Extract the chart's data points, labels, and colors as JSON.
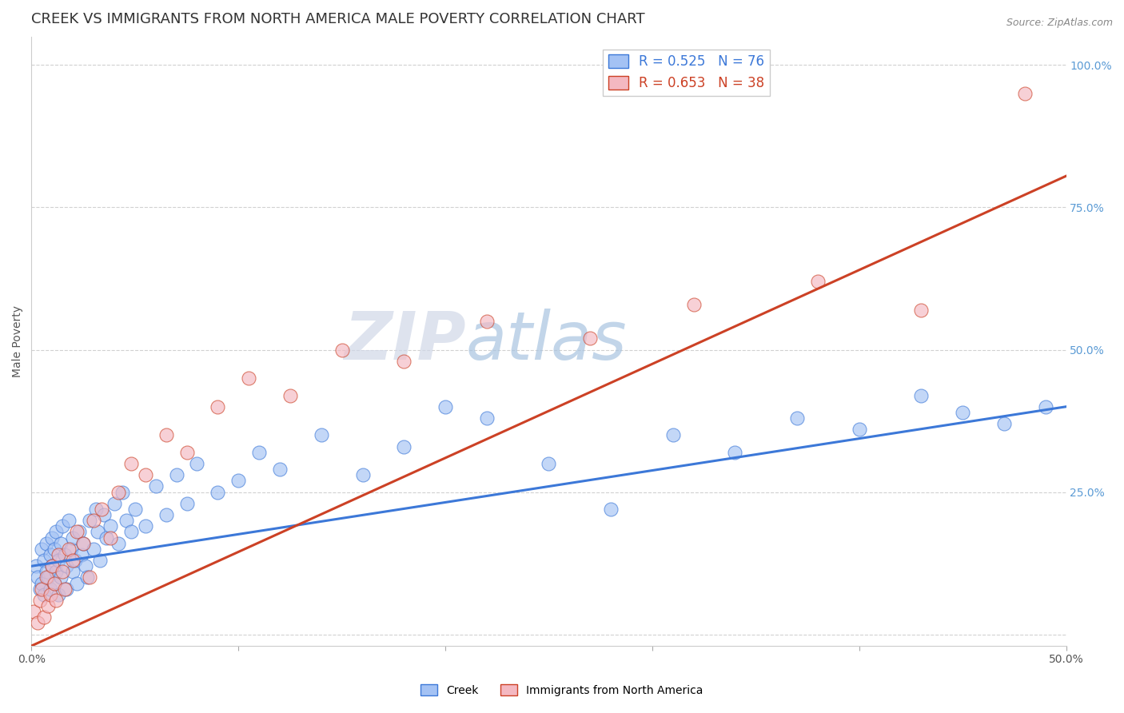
{
  "title": "CREEK VS IMMIGRANTS FROM NORTH AMERICA MALE POVERTY CORRELATION CHART",
  "source": "Source: ZipAtlas.com",
  "xlabel": "",
  "ylabel": "Male Poverty",
  "xlim": [
    0.0,
    0.5
  ],
  "ylim": [
    -0.02,
    1.05
  ],
  "yticks": [
    0.0,
    0.25,
    0.5,
    0.75,
    1.0
  ],
  "ytick_labels": [
    "",
    "25.0%",
    "50.0%",
    "75.0%",
    "100.0%"
  ],
  "xticks": [
    0.0,
    0.1,
    0.2,
    0.3,
    0.4,
    0.5
  ],
  "xtick_labels": [
    "0.0%",
    "",
    "",
    "",
    "",
    "50.0%"
  ],
  "blue_color": "#a4c2f4",
  "pink_color": "#f4b8c1",
  "blue_line_color": "#3c78d8",
  "pink_line_color": "#cc4125",
  "legend_blue_label": "R = 0.525   N = 76",
  "legend_pink_label": "R = 0.653   N = 38",
  "watermark_zip": "ZIP",
  "watermark_atlas": "atlas",
  "creek_x": [
    0.002,
    0.003,
    0.004,
    0.005,
    0.005,
    0.006,
    0.006,
    0.007,
    0.007,
    0.008,
    0.009,
    0.009,
    0.01,
    0.01,
    0.011,
    0.011,
    0.012,
    0.012,
    0.013,
    0.013,
    0.014,
    0.014,
    0.015,
    0.016,
    0.017,
    0.017,
    0.018,
    0.019,
    0.02,
    0.02,
    0.021,
    0.022,
    0.023,
    0.024,
    0.025,
    0.026,
    0.027,
    0.028,
    0.03,
    0.031,
    0.032,
    0.033,
    0.035,
    0.036,
    0.038,
    0.04,
    0.042,
    0.044,
    0.046,
    0.048,
    0.05,
    0.055,
    0.06,
    0.065,
    0.07,
    0.075,
    0.08,
    0.09,
    0.1,
    0.11,
    0.12,
    0.14,
    0.16,
    0.18,
    0.2,
    0.22,
    0.25,
    0.28,
    0.31,
    0.34,
    0.37,
    0.4,
    0.43,
    0.45,
    0.47,
    0.49
  ],
  "creek_y": [
    0.12,
    0.1,
    0.08,
    0.15,
    0.09,
    0.13,
    0.07,
    0.11,
    0.16,
    0.1,
    0.14,
    0.08,
    0.17,
    0.12,
    0.09,
    0.15,
    0.11,
    0.18,
    0.13,
    0.07,
    0.16,
    0.1,
    0.19,
    0.14,
    0.12,
    0.08,
    0.2,
    0.15,
    0.11,
    0.17,
    0.13,
    0.09,
    0.18,
    0.14,
    0.16,
    0.12,
    0.1,
    0.2,
    0.15,
    0.22,
    0.18,
    0.13,
    0.21,
    0.17,
    0.19,
    0.23,
    0.16,
    0.25,
    0.2,
    0.18,
    0.22,
    0.19,
    0.26,
    0.21,
    0.28,
    0.23,
    0.3,
    0.25,
    0.27,
    0.32,
    0.29,
    0.35,
    0.28,
    0.33,
    0.4,
    0.38,
    0.3,
    0.22,
    0.35,
    0.32,
    0.38,
    0.36,
    0.42,
    0.39,
    0.37,
    0.4
  ],
  "immig_x": [
    0.001,
    0.003,
    0.004,
    0.005,
    0.006,
    0.007,
    0.008,
    0.009,
    0.01,
    0.011,
    0.012,
    0.013,
    0.015,
    0.016,
    0.018,
    0.02,
    0.022,
    0.025,
    0.028,
    0.03,
    0.034,
    0.038,
    0.042,
    0.048,
    0.055,
    0.065,
    0.075,
    0.09,
    0.105,
    0.125,
    0.15,
    0.18,
    0.22,
    0.27,
    0.32,
    0.38,
    0.43,
    0.48
  ],
  "immig_y": [
    0.04,
    0.02,
    0.06,
    0.08,
    0.03,
    0.1,
    0.05,
    0.07,
    0.12,
    0.09,
    0.06,
    0.14,
    0.11,
    0.08,
    0.15,
    0.13,
    0.18,
    0.16,
    0.1,
    0.2,
    0.22,
    0.17,
    0.25,
    0.3,
    0.28,
    0.35,
    0.32,
    0.4,
    0.45,
    0.42,
    0.5,
    0.48,
    0.55,
    0.52,
    0.58,
    0.62,
    0.57,
    0.95
  ],
  "blue_intercept": 0.12,
  "blue_slope": 0.56,
  "pink_intercept": -0.02,
  "pink_slope": 1.65,
  "title_fontsize": 13,
  "axis_label_fontsize": 10,
  "tick_fontsize": 10,
  "background_color": "#ffffff",
  "grid_color": "#cccccc"
}
